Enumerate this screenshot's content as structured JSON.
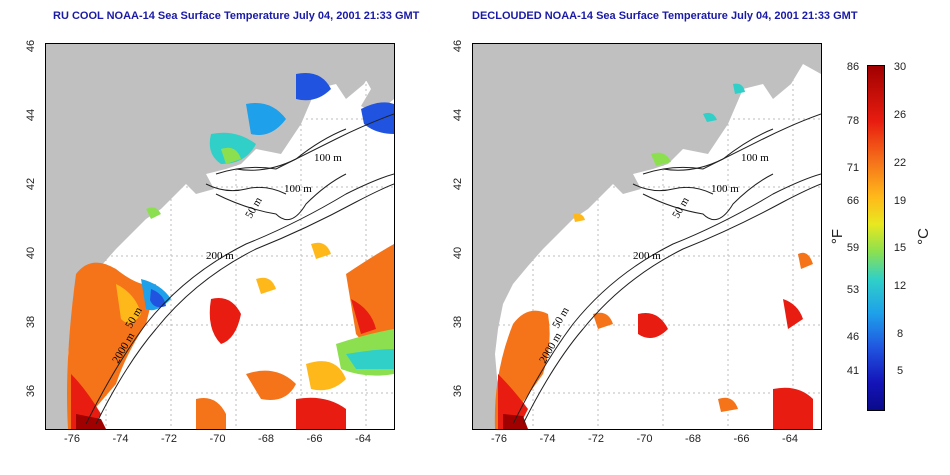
{
  "titles": {
    "left": "RU COOL NOAA-14 Sea Surface Temperature July 04, 2001 21:33 GMT",
    "right": "DECLOUDED NOAA-14 Sea Surface Temperature July 04, 2001 21:33 GMT"
  },
  "axes": {
    "x_ticks": [
      "-76",
      "-74",
      "-72",
      "-70",
      "-68",
      "-66",
      "-64"
    ],
    "y_ticks": [
      "46",
      "44",
      "42",
      "40",
      "38",
      "36"
    ]
  },
  "isobath_labels": [
    "100 m",
    "100 m",
    "50 m",
    "200 m",
    "50 m",
    "2000 m"
  ],
  "colorbar": {
    "fahrenheit_label": "°F",
    "celsius_label": "°C",
    "fahrenheit_ticks": [
      "86",
      "78",
      "71",
      "66",
      "59",
      "53",
      "46",
      "41"
    ],
    "celsius_ticks": [
      "30",
      "26",
      "22",
      "19",
      "15",
      "12",
      "8",
      "5"
    ],
    "colors": [
      "#a00000",
      "#e81c10",
      "#f5741a",
      "#ffb81a",
      "#e8e820",
      "#8ce050",
      "#30d0c8",
      "#1ea0ea",
      "#2054e0",
      "#1414b8"
    ]
  },
  "colors": {
    "land": "#c0c0c0",
    "title": "#1a1aa6"
  }
}
